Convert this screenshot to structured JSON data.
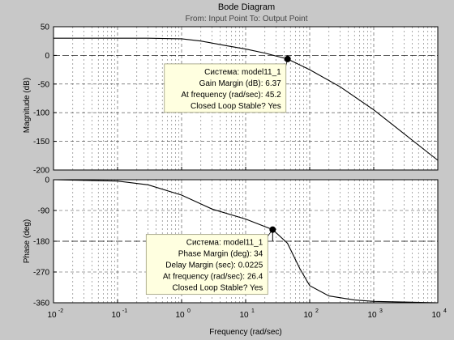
{
  "chart_data": {
    "type": "line",
    "title": "Bode Diagram",
    "subtitle": "From: Input Point  To: Output Point",
    "xlabel": "Frequency  (rad/sec)",
    "x_scale": "log",
    "xlim": [
      0.01,
      10000
    ],
    "x_tick_labels": [
      "10",
      "10",
      "10",
      "10",
      "10",
      "10",
      "10"
    ],
    "x_tick_exponents": [
      "-2",
      "-1",
      "0",
      "1",
      "2",
      "3",
      "4"
    ],
    "grid": true,
    "colors": {
      "background": "#c8c8c8",
      "axes": "#ffffff",
      "line": "#000000",
      "grid": "#000000",
      "datatip": "#ffffe0"
    },
    "panels": [
      {
        "name": "magnitude",
        "ylabel": "Magnitude (dB)",
        "ylim": [
          -200,
          50
        ],
        "y_ticks": [
          50,
          0,
          -50,
          -100,
          -150,
          -200
        ],
        "y_tick_labels": [
          "50",
          "0",
          "-50",
          "-100",
          "-150",
          "-200"
        ],
        "reference_line": 0,
        "x": [
          0.01,
          0.1,
          0.3,
          1,
          2,
          5,
          10,
          20,
          45.2,
          100,
          300,
          1000,
          10000
        ],
        "y": [
          30,
          30,
          30,
          29,
          25,
          17,
          11,
          4,
          -6.37,
          -25,
          -55,
          -95,
          -183
        ],
        "marker": {
          "x": 45.2,
          "y": -6.37
        },
        "datatip": {
          "lines": [
            "Система: model11_1",
            "Gain Margin (dB): 6.37",
            "At frequency (rad/sec): 45.2",
            "Closed Loop Stable? Yes"
          ]
        }
      },
      {
        "name": "phase",
        "ylabel": "Phase (deg)",
        "ylim": [
          -360,
          0
        ],
        "y_ticks": [
          0,
          -90,
          -180,
          -270,
          -360
        ],
        "y_tick_labels": [
          "0",
          "-90",
          "-180",
          "-270",
          "-360"
        ],
        "reference_line": -180,
        "x": [
          0.01,
          0.1,
          0.3,
          1,
          3,
          10,
          26.4,
          45,
          70,
          100,
          200,
          500,
          1000,
          10000
        ],
        "y": [
          0,
          -4,
          -15,
          -45,
          -86,
          -115,
          -146,
          -186,
          -260,
          -310,
          -340,
          -352,
          -356,
          -360
        ],
        "marker": {
          "x": 26.4,
          "y": -146
        },
        "datatip": {
          "lines": [
            "Система: model11_1",
            "Phase Margin (deg): 34",
            "Delay Margin (sec): 0.0225",
            "At frequency (rad/sec): 26.4",
            "Closed Loop Stable? Yes"
          ]
        }
      }
    ]
  }
}
